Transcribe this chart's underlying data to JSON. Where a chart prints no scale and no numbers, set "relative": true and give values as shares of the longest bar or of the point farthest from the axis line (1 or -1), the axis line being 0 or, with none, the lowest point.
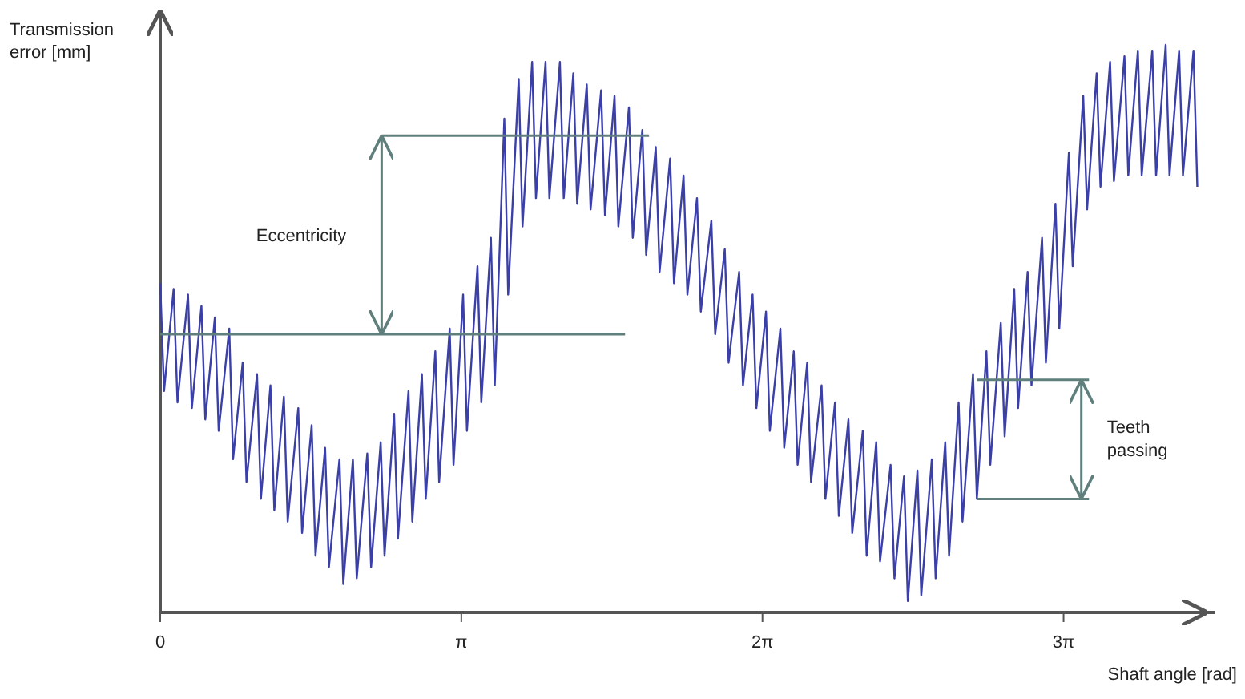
{
  "chart_data": {
    "type": "line",
    "relative": true,
    "xlabel": "Shaft angle [rad]",
    "ylabel": "Transmission error [mm]",
    "xlim": [
      0,
      11
    ],
    "xticks": [
      0,
      {
        "value": 3.1416,
        "label": "π"
      },
      {
        "value": 6.2832,
        "label": "2π"
      },
      {
        "value": 9.4248,
        "label": "3π"
      }
    ],
    "grid": false,
    "marker": "none",
    "line_style": "solid",
    "annotations": [
      "Eccentricity",
      "Teeth passing"
    ],
    "ref_lines": [
      {
        "axis": "y",
        "value": 0.49,
        "color": "#5f7f7c"
      },
      {
        "axis": "y",
        "value": 0.84,
        "color": "#5f7f7c"
      },
      {
        "axis": "y",
        "value": 0.41,
        "color": "#5f7f7c"
      },
      {
        "axis": "y",
        "value": 0.2,
        "color": "#5f7f7c"
      }
    ],
    "series": [
      {
        "color": "#3b3fa8",
        "x": [
          0,
          0.04,
          0.14,
          0.18,
          0.29,
          0.33,
          0.43,
          0.47,
          0.57,
          0.61,
          0.72,
          0.76,
          0.86,
          0.9,
          1.01,
          1.05,
          1.15,
          1.19,
          1.29,
          1.33,
          1.44,
          1.48,
          1.58,
          1.62,
          1.72,
          1.76,
          1.87,
          1.91,
          2.01,
          2.05,
          2.16,
          2.2,
          2.3,
          2.34,
          2.44,
          2.48,
          2.59,
          2.63,
          2.73,
          2.77,
          2.87,
          2.91,
          3.02,
          3.06,
          3.16,
          3.2,
          3.31,
          3.35,
          3.45,
          3.49,
          3.59,
          3.63,
          3.74,
          3.78,
          3.88,
          3.92,
          4.02,
          4.06,
          4.17,
          4.21,
          4.31,
          4.35,
          4.45,
          4.49,
          4.6,
          4.64,
          4.74,
          4.78,
          4.89,
          4.93,
          5.03,
          5.07,
          5.17,
          5.21,
          5.32,
          5.36,
          5.46,
          5.5,
          5.6,
          5.64,
          5.75,
          5.79,
          5.89,
          5.93,
          6.04,
          6.08,
          6.18,
          6.22,
          6.32,
          6.36,
          6.47,
          6.51,
          6.61,
          6.65,
          6.75,
          6.79,
          6.9,
          6.94,
          7.04,
          7.08,
          7.18,
          7.22,
          7.33,
          7.37,
          7.47,
          7.51,
          7.62,
          7.66,
          7.76,
          7.8,
          7.9,
          7.94,
          8.05,
          8.09,
          8.19,
          8.23,
          8.33,
          8.37,
          8.48,
          8.52,
          8.62,
          8.66,
          8.77,
          8.81,
          8.91,
          8.95,
          9.05,
          9.09,
          9.2,
          9.24,
          9.34,
          9.38,
          9.48,
          9.52,
          9.63,
          9.67,
          9.77,
          9.81,
          9.91,
          9.95,
          10.06,
          10.1,
          10.2,
          10.24,
          10.35,
          10.39,
          10.49,
          10.53,
          10.63,
          10.67,
          10.78,
          10.82
        ],
        "values": [
          0.58,
          0.39,
          0.57,
          0.37,
          0.56,
          0.36,
          0.54,
          0.34,
          0.52,
          0.32,
          0.5,
          0.27,
          0.44,
          0.23,
          0.42,
          0.2,
          0.4,
          0.18,
          0.38,
          0.16,
          0.36,
          0.14,
          0.33,
          0.1,
          0.29,
          0.08,
          0.27,
          0.05,
          0.27,
          0.06,
          0.28,
          0.08,
          0.3,
          0.1,
          0.35,
          0.13,
          0.39,
          0.16,
          0.42,
          0.2,
          0.46,
          0.23,
          0.5,
          0.26,
          0.56,
          0.32,
          0.61,
          0.37,
          0.66,
          0.4,
          0.87,
          0.56,
          0.94,
          0.68,
          0.97,
          0.73,
          0.97,
          0.73,
          0.97,
          0.73,
          0.95,
          0.72,
          0.93,
          0.71,
          0.92,
          0.7,
          0.91,
          0.68,
          0.89,
          0.66,
          0.85,
          0.63,
          0.82,
          0.6,
          0.8,
          0.58,
          0.77,
          0.56,
          0.73,
          0.53,
          0.69,
          0.49,
          0.64,
          0.44,
          0.6,
          0.4,
          0.56,
          0.36,
          0.53,
          0.32,
          0.5,
          0.29,
          0.46,
          0.26,
          0.44,
          0.23,
          0.4,
          0.2,
          0.37,
          0.17,
          0.34,
          0.14,
          0.32,
          0.1,
          0.3,
          0.09,
          0.26,
          0.06,
          0.24,
          0.02,
          0.25,
          0.03,
          0.27,
          0.06,
          0.3,
          0.1,
          0.37,
          0.16,
          0.42,
          0.2,
          0.46,
          0.26,
          0.51,
          0.31,
          0.57,
          0.36,
          0.6,
          0.4,
          0.66,
          0.44,
          0.72,
          0.5,
          0.81,
          0.61,
          0.91,
          0.71,
          0.95,
          0.75,
          0.97,
          0.76,
          0.98,
          0.77,
          0.99,
          0.77,
          0.99,
          0.77,
          1,
          0.77,
          0.99,
          0.77,
          0.99,
          0.75
        ]
      }
    ]
  }
}
